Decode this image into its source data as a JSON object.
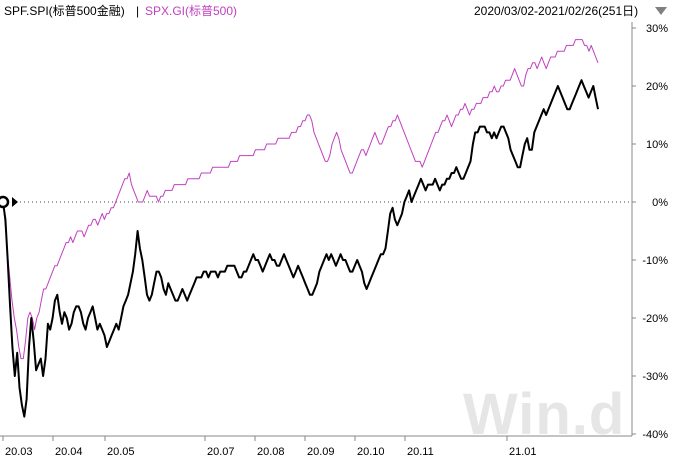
{
  "header": {
    "series1_label": "SPF.SPI(标普500金融)",
    "separator": "|",
    "series2_label": "SPX.GI(标普500)",
    "date_range": "2020/03/02-2021/02/26(251日)",
    "dropdown_icon": "triangle-down-icon"
  },
  "watermark": "Win.d",
  "chart_data": {
    "type": "line",
    "y_axis": {
      "position": "right",
      "ylim": [
        -40,
        30
      ],
      "tick_values": [
        30,
        20,
        10,
        0,
        -10,
        -20,
        -30,
        -40
      ],
      "tick_labels": [
        "30%",
        "20%",
        "10%",
        "0%",
        "-10%",
        "-20%",
        "-30%",
        "-40%"
      ]
    },
    "x_axis": {
      "tick_labels": [
        "20.03",
        "20.04",
        "20.05",
        "20.07",
        "20.08",
        "20.09",
        "20.10",
        "20.11",
        "21.01"
      ]
    },
    "baseline_marker_value": 0,
    "series": [
      {
        "name": "SPF.SPI(标普500金融)",
        "color": "#000000",
        "values": [
          0,
          -3,
          -10,
          -18,
          -25,
          -30,
          -26,
          -32,
          -35,
          -37,
          -34,
          -25,
          -20,
          -24,
          -29,
          -28,
          -27,
          -30,
          -27,
          -21,
          -22,
          -20,
          -17,
          -16,
          -19,
          -21,
          -19,
          -20,
          -22,
          -21,
          -19,
          -18,
          -18,
          -19,
          -21,
          -22,
          -20,
          -19,
          -18,
          -20,
          -22,
          -21,
          -22,
          -23,
          -25,
          -24,
          -23,
          -22,
          -21,
          -22,
          -20,
          -18,
          -17,
          -16,
          -14,
          -12,
          -9,
          -5,
          -8,
          -10,
          -13,
          -16,
          -17,
          -16,
          -14,
          -12,
          -12,
          -13,
          -15,
          -16,
          -14,
          -15,
          -16,
          -17,
          -17,
          -16,
          -15,
          -16,
          -17,
          -16,
          -15,
          -14,
          -13,
          -13,
          -13,
          -12,
          -12,
          -13,
          -12,
          -12,
          -12,
          -13,
          -12,
          -12,
          -12,
          -11,
          -11,
          -11,
          -11,
          -12,
          -13,
          -13,
          -12,
          -12,
          -11,
          -10,
          -9,
          -10,
          -10,
          -11,
          -12,
          -11,
          -10,
          -9,
          -10,
          -10,
          -11,
          -11,
          -10,
          -9,
          -10,
          -11,
          -12,
          -13,
          -12,
          -11,
          -12,
          -13,
          -14,
          -15,
          -16,
          -16,
          -15,
          -14,
          -12,
          -11,
          -10,
          -9,
          -10,
          -9,
          -10,
          -11,
          -10,
          -9,
          -10,
          -10,
          -11,
          -12,
          -12,
          -11,
          -10,
          -11,
          -12,
          -14,
          -15,
          -14,
          -13,
          -12,
          -11,
          -10,
          -9,
          -9,
          -8,
          -5,
          -2,
          -1,
          -3,
          -4,
          -3,
          -2,
          0,
          1,
          2,
          0,
          1,
          2,
          3,
          4,
          3,
          2,
          3,
          3,
          3,
          4,
          3,
          2,
          3,
          3,
          4,
          4,
          5,
          5,
          6,
          5,
          4,
          4,
          5,
          6,
          7,
          10,
          12,
          12,
          13,
          13,
          13,
          12,
          12,
          11,
          12,
          11,
          12,
          13,
          13,
          12,
          11,
          9,
          8,
          7,
          6,
          6,
          8,
          10,
          11,
          9,
          9,
          12,
          13,
          14,
          15,
          16,
          15,
          16,
          17,
          18,
          19,
          20,
          19,
          18,
          17,
          16,
          16,
          17,
          18,
          19,
          20,
          21,
          20,
          19,
          18,
          19,
          20,
          18,
          16
        ]
      },
      {
        "name": "SPX.GI(标普500)",
        "color": "#c040c0",
        "values": [
          0,
          -4,
          -9,
          -13,
          -17,
          -20,
          -22,
          -25,
          -27,
          -27,
          -24,
          -20,
          -19,
          -20,
          -22,
          -20,
          -19,
          -17,
          -15,
          -15,
          -14,
          -13,
          -12,
          -11,
          -11,
          -10,
          -9,
          -8,
          -7,
          -7,
          -6,
          -7,
          -6,
          -5,
          -5,
          -5,
          -6,
          -5,
          -4,
          -4,
          -3,
          -3,
          -4,
          -3,
          -2,
          -3,
          -2,
          -2,
          -1,
          -1,
          0,
          1,
          2,
          3,
          4,
          4,
          5,
          3,
          2,
          1,
          0,
          0,
          0,
          1,
          2,
          1,
          1,
          1,
          1,
          0,
          1,
          1,
          2,
          2,
          2,
          2,
          3,
          3,
          3,
          3,
          3,
          3,
          4,
          4,
          4,
          4,
          4,
          4,
          5,
          5,
          5,
          5,
          5,
          6,
          6,
          6,
          6,
          6,
          6,
          6,
          6,
          7,
          7,
          7,
          7,
          8,
          8,
          8,
          8,
          8,
          8,
          8,
          9,
          9,
          9,
          9,
          9,
          10,
          10,
          10,
          10,
          10,
          11,
          11,
          11,
          11,
          11,
          11,
          12,
          12,
          12,
          13,
          13,
          14,
          14,
          15,
          15,
          14,
          12,
          11,
          10,
          9,
          8,
          7,
          7,
          8,
          10,
          11,
          12,
          11,
          9,
          8,
          7,
          6,
          5,
          5,
          6,
          7,
          8,
          9,
          9,
          8,
          9,
          10,
          11,
          12,
          11,
          10,
          10,
          11,
          12,
          13,
          13,
          14,
          14,
          15,
          14,
          13,
          12,
          11,
          10,
          9,
          8,
          7,
          7,
          7,
          6,
          7,
          8,
          9,
          10,
          11,
          12,
          12,
          13,
          14,
          14,
          15,
          14,
          13,
          14,
          15,
          15,
          16,
          16,
          17,
          16,
          15,
          16,
          16,
          17,
          17,
          17,
          18,
          18,
          18,
          19,
          19,
          20,
          19,
          19,
          20,
          20,
          21,
          21,
          21,
          22,
          23,
          22,
          21,
          20,
          20,
          22,
          23,
          23,
          24,
          24,
          23,
          24,
          25,
          24,
          23,
          24,
          25,
          25,
          25,
          26,
          26,
          26,
          26,
          27,
          27,
          27,
          27,
          28,
          28,
          28,
          28,
          27,
          27,
          26,
          27,
          26,
          25,
          24
        ]
      }
    ]
  }
}
